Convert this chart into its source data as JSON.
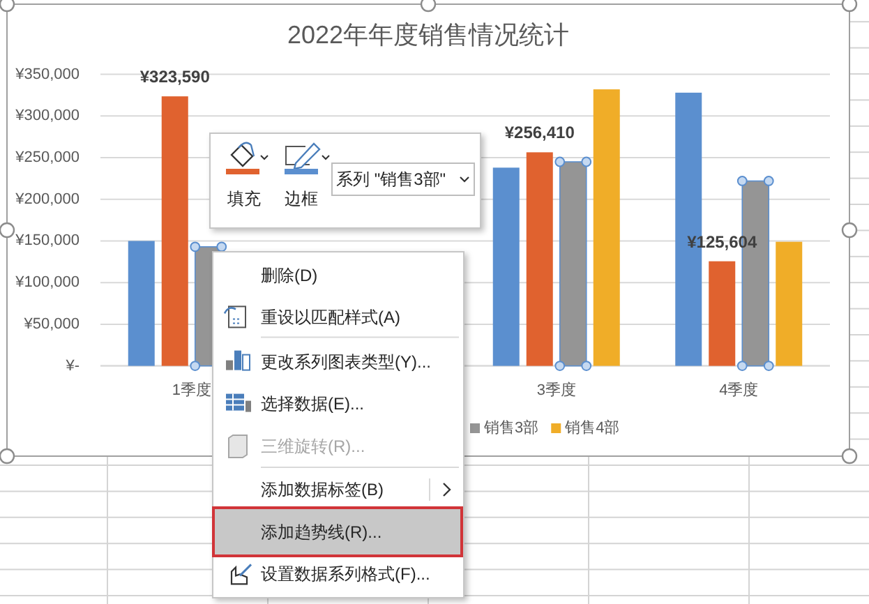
{
  "chart_data": {
    "type": "bar",
    "title": "2022年年度销售情况统计",
    "categories": [
      "1季度",
      null,
      "3季度",
      "4季度"
    ],
    "series": [
      {
        "color": "#5b8fcf",
        "values": [
          150000,
          null,
          238000,
          328000
        ]
      },
      {
        "color": "#e0622f",
        "values": [
          323590,
          null,
          256410,
          125604
        ],
        "value_labels": [
          "¥323,590",
          null,
          "¥256,410",
          "¥125,604"
        ]
      },
      {
        "name": "销售3部",
        "color": "#959595",
        "values": [
          143000,
          null,
          245000,
          222000
        ]
      },
      {
        "name": "销售4部",
        "color": "#f0ad28",
        "values": [
          null,
          null,
          332000,
          149000
        ]
      }
    ],
    "ylim": [
      0,
      350000
    ],
    "yticks": [
      {
        "value": 0,
        "label": "¥-"
      },
      {
        "value": 50000,
        "label": "¥50,000"
      },
      {
        "value": 100000,
        "label": "¥100,000"
      },
      {
        "value": 150000,
        "label": "¥150,000"
      },
      {
        "value": 200000,
        "label": "¥200,000"
      },
      {
        "value": 250000,
        "label": "¥250,000"
      },
      {
        "value": 300000,
        "label": "¥300,000"
      },
      {
        "value": 350000,
        "label": "¥350,000"
      }
    ],
    "grid": "y",
    "legend": "bottom",
    "annotations": [
      "填充",
      "边框",
      "系列 \"销售3部\"",
      "删除(D)",
      "重设以匹配样式(A)",
      "更改系列图表类型(Y)...",
      "选择数据(E)...",
      "三维旋转(R)...",
      "添加数据标签(B)",
      "添加趋势线(R)...",
      "设置数据系列格式(F)..."
    ]
  }
}
